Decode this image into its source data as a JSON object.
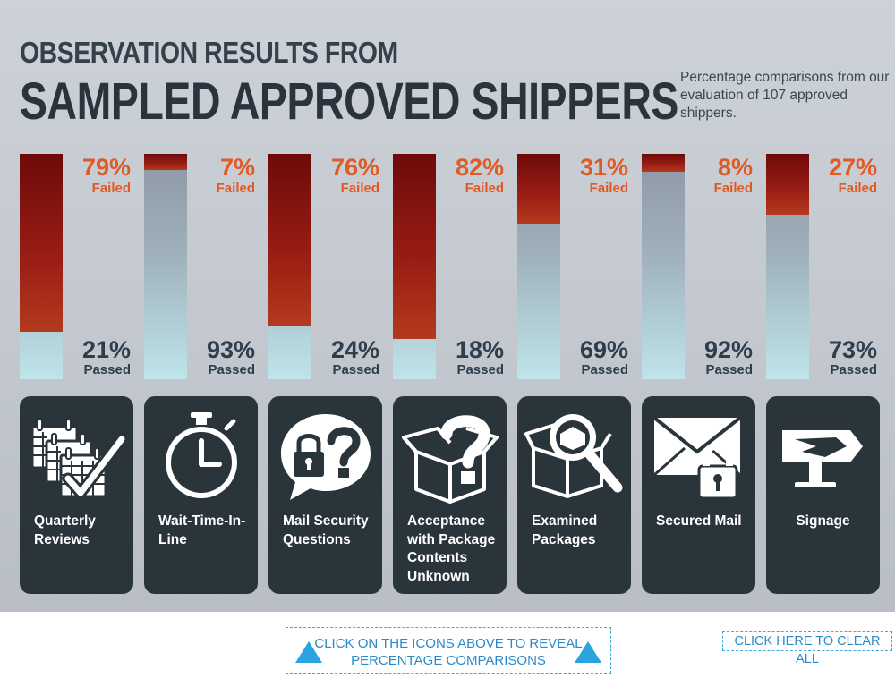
{
  "title_line1": "OBSERVATION RESULTS FROM",
  "title_line2": "SAMPLED APPROVED SHIPPERS",
  "subtitle": "Percentage comparisons from our evaluation of 107 approved shippers.",
  "chart_data": {
    "type": "bar",
    "stacked": true,
    "title": "Observation Results from Sampled Approved Shippers",
    "categories": [
      "Quarterly Reviews",
      "Wait-Time-In-Line",
      "Mail Security Questions",
      "Acceptance with Package Contents Unknown",
      "Examined Packages",
      "Secured Mail",
      "Signage"
    ],
    "series": [
      {
        "name": "Failed",
        "values": [
          79,
          7,
          76,
          82,
          31,
          8,
          27
        ],
        "color": "#8b1a12"
      },
      {
        "name": "Passed",
        "values": [
          21,
          93,
          24,
          18,
          69,
          92,
          73
        ],
        "color": "#a9c6cf"
      }
    ],
    "ylim": [
      0,
      100
    ],
    "unit": "%"
  },
  "bars": [
    {
      "failed_pct": "79%",
      "failed_label": "Failed",
      "passed_pct": "21%",
      "passed_label": "Passed",
      "failed": 79
    },
    {
      "failed_pct": "7%",
      "failed_label": "Failed",
      "passed_pct": "93%",
      "passed_label": "Passed",
      "failed": 7
    },
    {
      "failed_pct": "76%",
      "failed_label": "Failed",
      "passed_pct": "24%",
      "passed_label": "Passed",
      "failed": 76
    },
    {
      "failed_pct": "82%",
      "failed_label": "Failed",
      "passed_pct": "18%",
      "passed_label": "Passed",
      "failed": 82
    },
    {
      "failed_pct": "31%",
      "failed_label": "Failed",
      "passed_pct": "69%",
      "passed_label": "Passed",
      "failed": 31
    },
    {
      "failed_pct": "8%",
      "failed_label": "Failed",
      "passed_pct": "92%",
      "passed_label": "Passed",
      "failed": 8
    },
    {
      "failed_pct": "27%",
      "failed_label": "Failed",
      "passed_pct": "73%",
      "passed_label": "Passed",
      "failed": 27
    }
  ],
  "categories": [
    {
      "label": "Quarterly Reviews",
      "icon": "calendar-check-icon"
    },
    {
      "label": "Wait-Time-In-Line",
      "icon": "stopwatch-icon"
    },
    {
      "label": "Mail Security Questions",
      "icon": "lock-question-bubble-icon"
    },
    {
      "label": "Acceptance with Package Contents Unknown",
      "icon": "box-question-icon"
    },
    {
      "label": "Examined Packages",
      "icon": "box-magnifier-icon"
    },
    {
      "label": "Secured Mail",
      "icon": "envelope-lock-icon"
    },
    {
      "label": "Signage",
      "icon": "usps-eagle-sign-icon"
    }
  ],
  "buttons": {
    "reveal_label": "CLICK ON THE ICONS ABOVE TO REVEAL PERCENTAGE COMPARISONS",
    "clear_label": "CLICK HERE TO CLEAR ALL"
  },
  "colors": {
    "failed_text": "#e05a24",
    "passed_text": "#2f3e4c",
    "card_bg": "#29343b",
    "accent_blue": "#2b8ac8"
  }
}
